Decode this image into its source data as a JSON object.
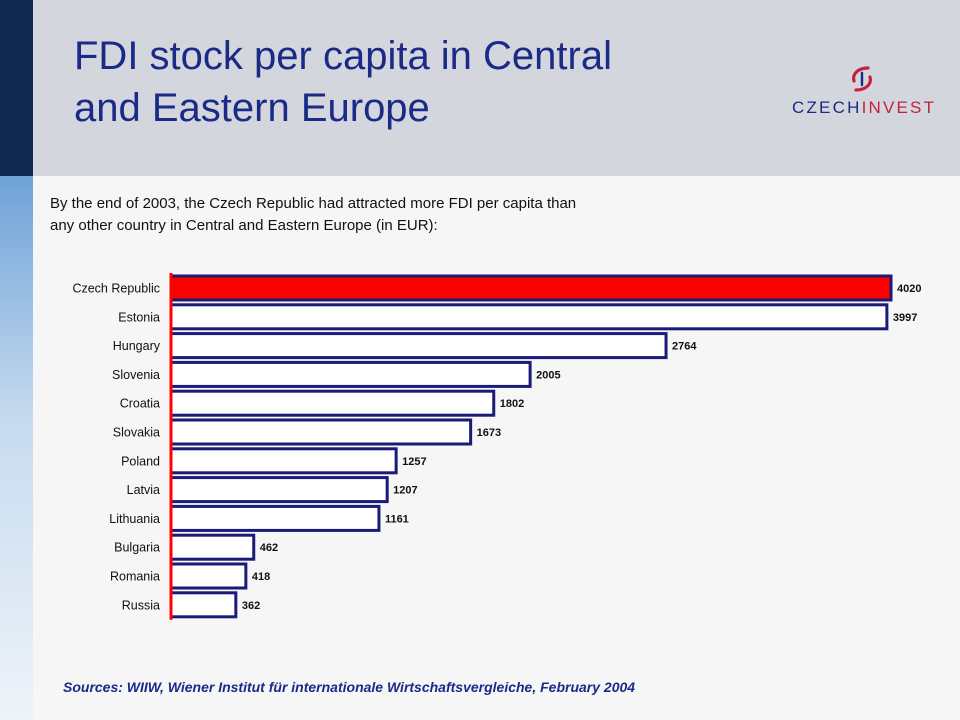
{
  "header": {
    "title_line1": "FDI stock per capita in Central",
    "title_line2": "and Eastern Europe"
  },
  "logo": {
    "text_main": "CZECH",
    "text_accent": "INVEST",
    "colors": {
      "navy": "#1a2a86",
      "red": "#c3223a"
    }
  },
  "intro": {
    "line1": "By the end of 2003, the Czech Republic had attracted more FDI per capita than",
    "line2": "any other country in Central and Eastern Europe (in EUR):"
  },
  "chart_data": {
    "type": "bar",
    "orientation": "horizontal",
    "categories": [
      "Czech Republic",
      "Estonia",
      "Hungary",
      "Slovenia",
      "Croatia",
      "Slovakia",
      "Poland",
      "Latvia",
      "Lithuania",
      "Bulgaria",
      "Romania",
      "Russia"
    ],
    "values": [
      4020,
      3997,
      2764,
      2005,
      1802,
      1673,
      1257,
      1207,
      1161,
      462,
      418,
      362
    ],
    "highlight": "Czech Republic",
    "xlim": [
      0,
      4020
    ],
    "grid": false,
    "legend": "none",
    "colors": {
      "highlight_fill": "#ff0000",
      "bar_fill": "#ffffff",
      "bar_border": "#1a1a78",
      "axis": "#ff0000"
    }
  },
  "footer": {
    "sources": "Sources: WIIW, Wiener Institut für internationale Wirtschaftsvergleiche, February 2004"
  }
}
